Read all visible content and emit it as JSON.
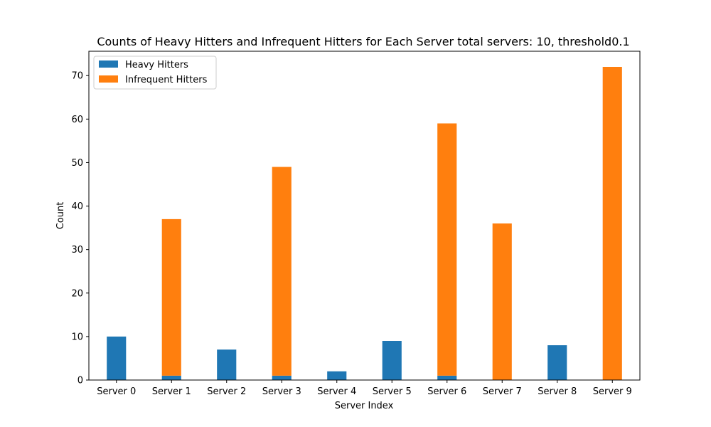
{
  "chart_data": {
    "type": "bar",
    "stacked": true,
    "title": "Counts of Heavy Hitters and Infrequent Hitters for Each Server total servers: 10, threshold0.1",
    "xlabel": "Server Index",
    "ylabel": "Count",
    "ylim": [
      0,
      75.6
    ],
    "yticks": [
      0,
      10,
      20,
      30,
      40,
      50,
      60,
      70
    ],
    "categories": [
      "Server 0",
      "Server 1",
      "Server 2",
      "Server 3",
      "Server 4",
      "Server 5",
      "Server 6",
      "Server 7",
      "Server 8",
      "Server 9"
    ],
    "series": [
      {
        "name": "Heavy Hitters",
        "color": "#1f77b4",
        "values": [
          10,
          1,
          7,
          1,
          2,
          9,
          1,
          0,
          8,
          0
        ]
      },
      {
        "name": "Infrequent Hitters",
        "color": "#ff7f0e",
        "values": [
          0,
          36,
          0,
          48,
          0,
          0,
          58,
          36,
          0,
          72
        ]
      }
    ],
    "legend": "top-left",
    "grid": false
  }
}
